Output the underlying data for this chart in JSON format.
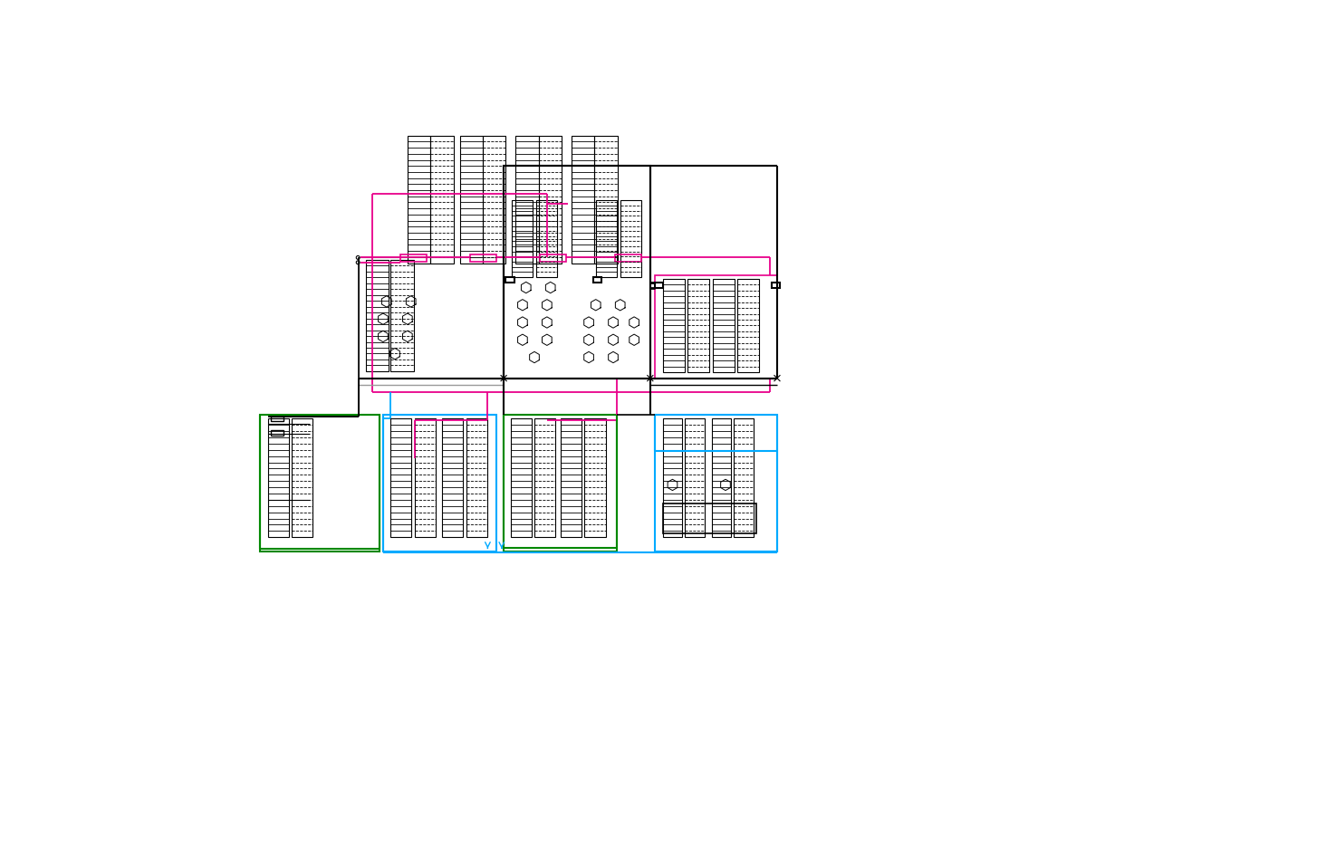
{
  "bg_color": "#ffffff",
  "black": "#000000",
  "magenta": "#e8008a",
  "cyan": "#00aaff",
  "green": "#008800",
  "gray": "#999999",
  "figsize": [
    14.75,
    9.54
  ],
  "dpi": 100
}
